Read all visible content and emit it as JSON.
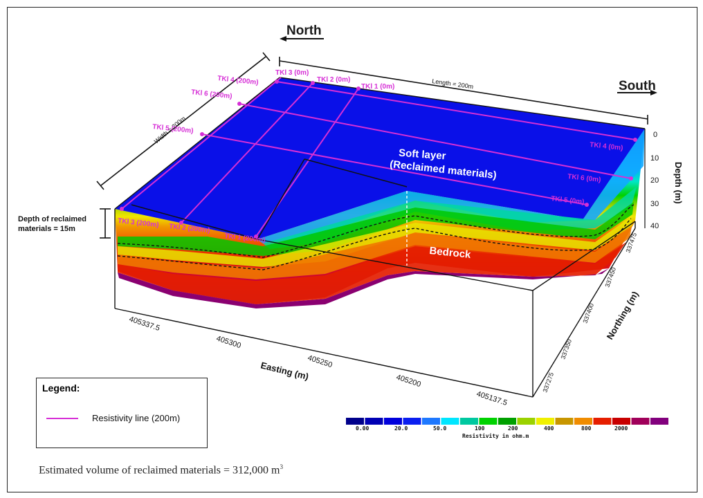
{
  "directions": {
    "north": "North",
    "south": "South"
  },
  "dimensions": {
    "length": "Length = 200m",
    "width": "Width = 200m"
  },
  "depth_note": {
    "line1": "Depth of reclaimed",
    "line2": "materials = 15m"
  },
  "layers": {
    "soft_line1": "Soft layer",
    "soft_line2": "(Reclaimed materials)",
    "bedrock": "Bedrock"
  },
  "resistivity_lines": [
    "TKl 3 (0m)",
    "TKl 2 (0m)",
    "TKl 1 (0m)",
    "TKl 4 (200m)",
    "TKl 6 (200m)",
    "TKl 5 (200m)",
    "TKl 3 (200m)",
    "TKl 2 (200m)",
    "TKl 1 (200m)",
    "TKl 4 (0m)",
    "TKl 6 (0m)",
    "TKl 5 (0m)"
  ],
  "depth_axis": {
    "title": "Depth (m)",
    "ticks": [
      "0",
      "10",
      "20",
      "30",
      "40"
    ]
  },
  "easting_axis": {
    "title": "Easting (m)",
    "ticks": [
      "405337.5",
      "405300",
      "405250",
      "405200",
      "405137.5"
    ]
  },
  "northing_axis": {
    "title": "Northing (m)",
    "ticks": [
      "337475",
      "337450",
      "337400",
      "337350",
      "337275"
    ]
  },
  "legend": {
    "title": "Legend:",
    "item": "Resistivity line (200m)",
    "line_color": "#d62fd6"
  },
  "colorbar": {
    "title": "Resistivity in ohm.m",
    "tick_labels": [
      "0.00",
      "20.0",
      "50.0",
      "100",
      "200",
      "400",
      "800",
      "2000"
    ],
    "colors": [
      "#00008b",
      "#0000b4",
      "#0000dc",
      "#0a1ef0",
      "#1e78ff",
      "#00e6ff",
      "#00c8a0",
      "#00d200",
      "#00a000",
      "#9bd200",
      "#f0f000",
      "#c89600",
      "#f08c00",
      "#e61e00",
      "#c80000",
      "#a0005a",
      "#82007d"
    ]
  },
  "volume": {
    "text": "Estimated volume of reclaimed materials = 312,000 m",
    "superscript": "3"
  }
}
